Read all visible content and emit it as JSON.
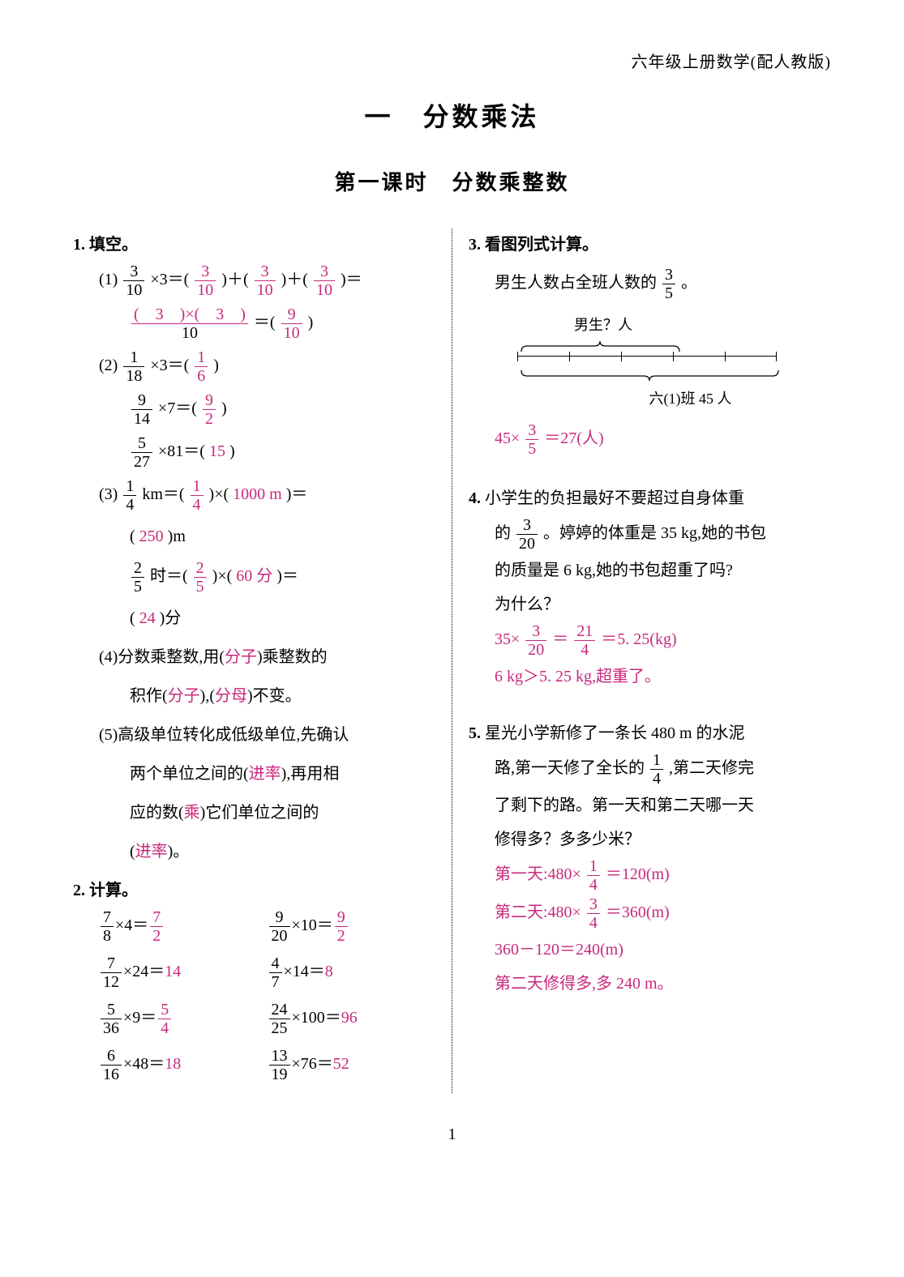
{
  "header": "六年级上册数学(配人教版)",
  "chapter": "一　分数乘法",
  "lesson": "第一课时　分数乘整数",
  "pageNumber": "1",
  "colors": {
    "answer": "#c8287d",
    "text": "#000000"
  },
  "q1": {
    "title": "1. 填空。",
    "p1": {
      "label": "(1)",
      "f": {
        "n": "3",
        "d": "10"
      },
      "times": "×3＝(",
      "a1": {
        "n": "3",
        "d": "10"
      },
      "mid": ")＋(",
      "a2": {
        "n": "3",
        "d": "10"
      },
      "mid2": ")＋(",
      "a3": {
        "n": "3",
        "d": "10"
      },
      "end": ")＝",
      "line2num": "(　3　)×(　3　)",
      "line2den": "10",
      "eq": "＝(",
      "a4": {
        "n": "9",
        "d": "10"
      },
      "close": ")"
    },
    "p2": {
      "label": "(2)",
      "r1": {
        "f": {
          "n": "1",
          "d": "18"
        },
        "t": "×3＝(",
        "a": {
          "n": "1",
          "d": "6"
        },
        "c": ")"
      },
      "r2": {
        "f": {
          "n": "9",
          "d": "14"
        },
        "t": "×7＝(",
        "a": {
          "n": "9",
          "d": "2"
        },
        "c": ")"
      },
      "r3": {
        "f": {
          "n": "5",
          "d": "27"
        },
        "t": "×81＝(",
        "a": "15",
        "c": ")"
      }
    },
    "p3": {
      "label": "(3)",
      "r1": {
        "f": {
          "n": "1",
          "d": "4"
        },
        "pre": " km＝(",
        "a1": {
          "n": "1",
          "d": "4"
        },
        "mid": ")×(",
        "a2": "1000 m",
        "c": ")＝"
      },
      "r1b": {
        "open": "(",
        "a": "250",
        "close": ")m"
      },
      "r2": {
        "f": {
          "n": "2",
          "d": "5"
        },
        "pre": "时＝(",
        "a1": {
          "n": "2",
          "d": "5"
        },
        "mid": ")×(",
        "a2": "60 分",
        "c": ")＝"
      },
      "r2b": {
        "open": "(",
        "a": "24",
        "close": ")分"
      }
    },
    "p4": {
      "label": "(4)",
      "t1": "分数乘整数,用(",
      "a1": "分子",
      "t2": ")乘整数的",
      "t3": "积作(",
      "a2": "分子",
      "t4": "),(",
      "a3": "分母",
      "t5": ")不变。"
    },
    "p5": {
      "label": "(5)",
      "t1": "高级单位转化成低级单位,先确认",
      "t2": "两个单位之间的(",
      "a1": "进率",
      "t3": "),再用相",
      "t4": "应的数(",
      "a2": "乘",
      "t5": ")它们单位之间的",
      "t6": "(",
      "a3": "进率",
      "t7": ")。"
    }
  },
  "q2": {
    "title": "2. 计算。",
    "rows": [
      {
        "f": {
          "n": "7",
          "d": "8"
        },
        "t": "×4＝",
        "a": {
          "n": "7",
          "d": "2"
        }
      },
      {
        "f": {
          "n": "9",
          "d": "20"
        },
        "t": "×10＝",
        "a": {
          "n": "9",
          "d": "2"
        }
      },
      {
        "f": {
          "n": "7",
          "d": "12"
        },
        "t": "×24＝",
        "a": "14"
      },
      {
        "f": {
          "n": "4",
          "d": "7"
        },
        "t": "×14＝",
        "a": "8"
      },
      {
        "f": {
          "n": "5",
          "d": "36"
        },
        "t": "×9＝",
        "a": {
          "n": "5",
          "d": "4"
        }
      },
      {
        "f": {
          "n": "24",
          "d": "25"
        },
        "t": "×100＝",
        "a": "96"
      },
      {
        "f": {
          "n": "6",
          "d": "16"
        },
        "t": "×48＝",
        "a": "18"
      },
      {
        "f": {
          "n": "13",
          "d": "19"
        },
        "t": "×76＝",
        "a": "52"
      }
    ]
  },
  "q3": {
    "title": "3. 看图列式计算。",
    "sub": "男生人数占全班人数的",
    "frac": {
      "n": "3",
      "d": "5"
    },
    "period": "。",
    "topLabel": "男生？人",
    "botLabel": "六(1)班 45 人",
    "ansPre": "45×",
    "ansFrac": {
      "n": "3",
      "d": "5"
    },
    "ansPost": "＝27(人)"
  },
  "q4": {
    "title": "4. ",
    "text1": "小学生的负担最好不要超过自身体重",
    "text2pre": "的",
    "frac": {
      "n": "3",
      "d": "20"
    },
    "text2post": "。婷婷的体重是 35 kg,她的书包",
    "text3": "的质量是 6 kg,她的书包超重了吗?",
    "text4": "为什么？",
    "a1pre": "35×",
    "a1f1": {
      "n": "3",
      "d": "20"
    },
    "a1eq": "＝",
    "a1f2": {
      "n": "21",
      "d": "4"
    },
    "a1post": "＝5. 25(kg)",
    "a2": "6 kg＞5. 25 kg,超重了。"
  },
  "q5": {
    "title": "5. ",
    "t1": "星光小学新修了一条长 480 m 的水泥",
    "t2pre": "路,第一天修了全长的",
    "t2f": {
      "n": "1",
      "d": "4"
    },
    "t2post": ",第二天修完",
    "t3": "了剩下的路。第一天和第二天哪一天",
    "t4": "修得多？多多少米？",
    "a1pre": "第一天:480×",
    "a1f": {
      "n": "1",
      "d": "4"
    },
    "a1post": "＝120(m)",
    "a2pre": "第二天:480×",
    "a2f": {
      "n": "3",
      "d": "4"
    },
    "a2post": "＝360(m)",
    "a3": "360－120＝240(m)",
    "a4": "第二天修得多,多 240 m。"
  }
}
